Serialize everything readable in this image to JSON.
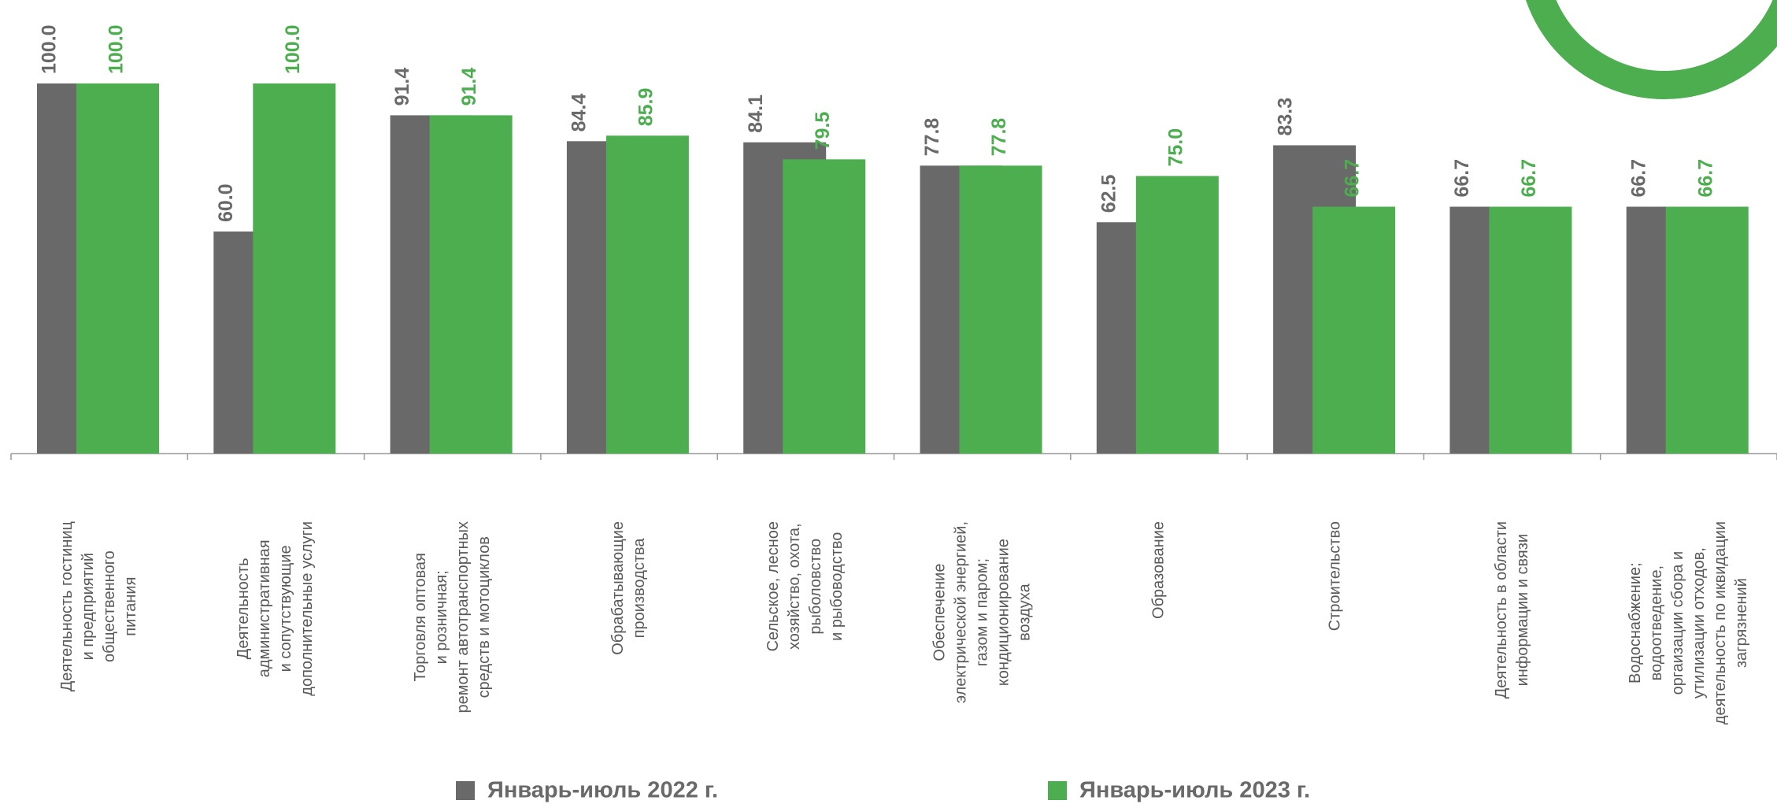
{
  "chart_data": {
    "type": "bar",
    "categories": [
      "Деятельность гостиниц\nи предприятий\nобщественного\nпитания",
      "Деятельность\nадминистративная\nи сопутствующие\nдополнительные услуги",
      "Торговля оптовая\nи розничная;\nремонт автотранспортных\nсредств и мотоциклов",
      "Обрабатывающие\nпроизводства",
      "Сельское, лесное\nхозяйство, охота,\nрыболовство\nи рыбоводство",
      "Обеспечение\nэлектрической энергией,\nгазом и паром;\nкондиционирование\nвоздуха",
      "Образование",
      "Строительство",
      "Деятельность в области\nинформации и связи",
      "Водоснабжение;\nводоотведение,\nоргаизации сбора и\nутилизации отходов,\nдеятельность по иквидации\nзагрязнений"
    ],
    "series": [
      {
        "name": "Январь-июль 2022 г.",
        "color": "#696969",
        "values": [
          100,
          60,
          91.4,
          84.4,
          84.1,
          77.8,
          62.5,
          83.3,
          66.7,
          66.7
        ],
        "value_labels": [
          "100.0",
          "60.0",
          "91.4",
          "84.4",
          "84.1",
          "77.8",
          "62.5",
          "83.3",
          "66.7",
          "66.7"
        ]
      },
      {
        "name": "Январь-июль 2023 г.",
        "color": "#4cae4f",
        "values": [
          100,
          100,
          91.4,
          85.9,
          79.5,
          77.8,
          75,
          66.7,
          66.7,
          66.7
        ],
        "value_labels": [
          "100.0",
          "100.0",
          "91.4",
          "85.9",
          "79.5",
          "77.8",
          "75.0",
          "66.7",
          "66.7",
          "66.7"
        ]
      }
    ],
    "ylim": [
      0,
      100
    ]
  }
}
